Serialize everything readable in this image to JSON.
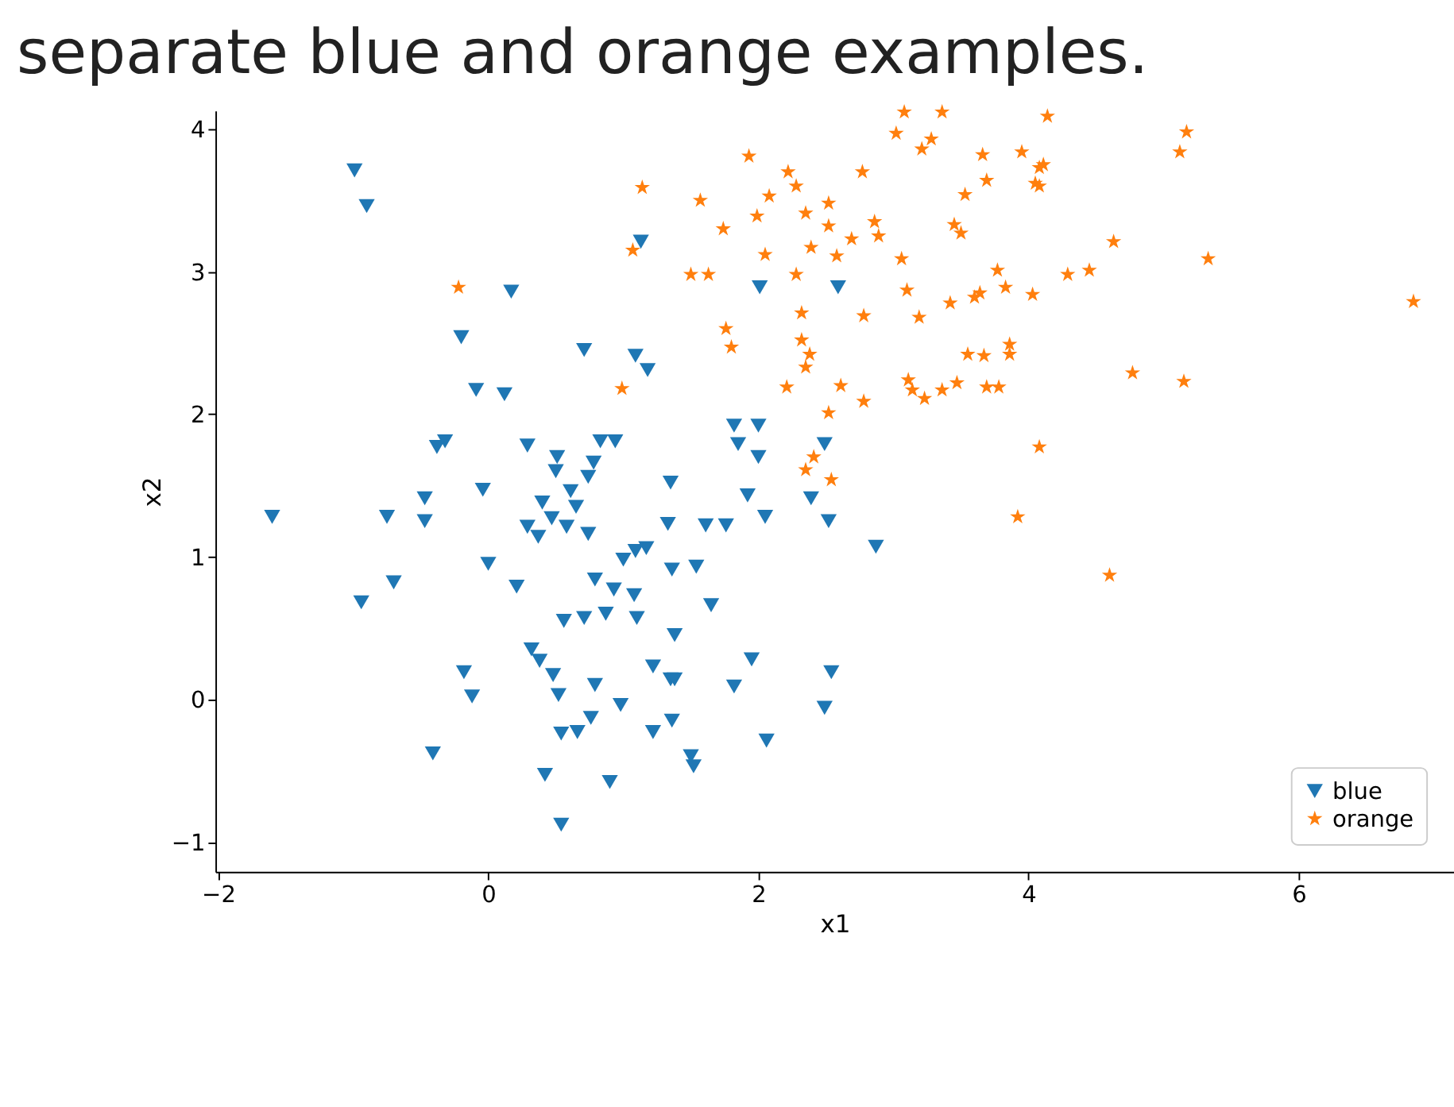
{
  "chart_data": {
    "type": "scatter",
    "title": "separate blue and orange examples.",
    "xlabel": "x1",
    "ylabel": "x2",
    "xlim": [
      -2.02,
      7.15
    ],
    "ylim": [
      -1.21,
      4.13
    ],
    "xticks": [
      -2,
      0,
      2,
      4,
      6
    ],
    "yticks": [
      -1,
      0,
      1,
      2,
      3,
      4
    ],
    "grid": false,
    "legend": "bottom right",
    "series": [
      {
        "name": "blue",
        "color": "#1f77b4",
        "marker": "triangle",
        "x": [
          -0.99,
          -0.9,
          0.17,
          -0.2,
          0.71,
          1.09,
          1.18,
          -0.09,
          0.12,
          1.13,
          2.01,
          2.59,
          -0.32,
          -0.38,
          0.29,
          0.51,
          0.5,
          0.83,
          0.94,
          0.78,
          0.74,
          0.61,
          0.65,
          0.4,
          0.29,
          0.37,
          0.58,
          0.47,
          0.74,
          -0.47,
          -0.47,
          -0.75,
          -1.6,
          -0.04,
          1.35,
          1.61,
          1.76,
          1.33,
          1.82,
          1.85,
          2.0,
          2.0,
          1.92,
          2.05,
          2.49,
          2.39,
          2.52,
          2.87,
          0.0,
          0.21,
          -0.7,
          -0.94,
          0.79,
          1.0,
          1.09,
          1.17,
          0.93,
          1.08,
          1.36,
          1.54,
          1.65,
          0.56,
          0.71,
          0.87,
          1.1,
          1.38,
          0.32,
          0.38,
          0.48,
          0.79,
          1.22,
          1.35,
          1.38,
          1.95,
          1.82,
          2.54,
          2.49,
          -0.18,
          -0.12,
          0.52,
          0.98,
          0.76,
          1.22,
          1.36,
          0.54,
          0.66,
          1.5,
          1.52,
          2.06,
          -0.41,
          0.42,
          0.9,
          0.54
        ],
        "values": [
          3.71,
          3.46,
          2.86,
          2.54,
          2.45,
          2.41,
          2.31,
          2.17,
          2.14,
          3.21,
          2.89,
          2.89,
          1.81,
          1.77,
          1.78,
          1.7,
          1.6,
          1.81,
          1.81,
          1.66,
          1.56,
          1.46,
          1.35,
          1.38,
          1.21,
          1.14,
          1.21,
          1.27,
          1.16,
          1.41,
          1.25,
          1.28,
          1.28,
          1.47,
          1.52,
          1.22,
          1.22,
          1.23,
          1.92,
          1.79,
          1.92,
          1.7,
          1.43,
          1.28,
          1.79,
          1.41,
          1.25,
          1.07,
          0.95,
          0.79,
          0.82,
          0.68,
          0.84,
          0.98,
          1.04,
          1.06,
          0.77,
          0.73,
          0.91,
          0.93,
          0.66,
          0.55,
          0.57,
          0.6,
          0.57,
          0.45,
          0.35,
          0.27,
          0.17,
          0.1,
          0.23,
          0.14,
          0.14,
          0.28,
          0.09,
          0.19,
          -0.06,
          0.19,
          0.02,
          0.03,
          -0.04,
          -0.13,
          -0.23,
          -0.15,
          -0.24,
          -0.23,
          -0.4,
          -0.47,
          -0.29,
          -0.38,
          -0.53,
          -0.58,
          -0.88
        ]
      },
      {
        "name": "orange",
        "color": "#ff7f0e",
        "marker": "star",
        "x": [
          -0.22,
          1.14,
          1.07,
          0.99,
          1.57,
          1.5,
          1.63,
          1.74,
          1.76,
          1.8,
          1.93,
          1.99,
          2.08,
          2.05,
          2.22,
          2.28,
          2.35,
          2.52,
          2.52,
          2.39,
          2.69,
          2.86,
          2.89,
          2.58,
          2.28,
          2.32,
          2.78,
          2.32,
          2.38,
          2.35,
          2.21,
          2.61,
          2.78,
          2.52,
          2.41,
          2.35,
          2.54,
          2.77,
          3.02,
          3.08,
          3.36,
          3.21,
          3.28,
          3.66,
          3.95,
          4.08,
          4.05,
          3.69,
          3.53,
          3.45,
          3.5,
          3.06,
          3.1,
          3.19,
          3.42,
          3.6,
          3.64,
          3.77,
          3.83,
          4.03,
          3.55,
          3.67,
          3.86,
          3.86,
          3.11,
          3.14,
          3.23,
          3.36,
          3.47,
          3.69,
          3.78,
          4.08,
          4.14,
          5.17,
          5.12,
          4.11,
          4.08,
          4.63,
          5.33,
          4.29,
          4.45,
          6.85,
          4.77,
          5.15,
          4.6,
          3.92
        ],
        "values": [
          2.89,
          3.59,
          3.15,
          2.18,
          3.5,
          2.98,
          2.98,
          3.3,
          2.6,
          2.47,
          3.81,
          3.39,
          3.53,
          3.12,
          3.7,
          3.6,
          3.41,
          3.48,
          3.32,
          3.17,
          3.23,
          3.35,
          3.25,
          3.11,
          2.98,
          2.71,
          2.69,
          2.52,
          2.42,
          2.33,
          2.19,
          2.2,
          2.09,
          2.01,
          1.7,
          1.61,
          1.54,
          3.7,
          3.97,
          4.12,
          4.12,
          3.86,
          3.93,
          3.82,
          3.84,
          3.73,
          3.62,
          3.64,
          3.54,
          3.33,
          3.27,
          3.09,
          2.87,
          2.68,
          2.78,
          2.82,
          2.85,
          3.01,
          2.89,
          2.84,
          2.42,
          2.41,
          2.49,
          2.42,
          2.24,
          2.17,
          2.11,
          2.17,
          2.22,
          2.19,
          2.19,
          1.77,
          4.09,
          3.98,
          3.84,
          3.75,
          3.6,
          3.21,
          3.09,
          2.98,
          3.01,
          2.79,
          2.29,
          2.23,
          0.87,
          1.28
        ]
      }
    ]
  }
}
